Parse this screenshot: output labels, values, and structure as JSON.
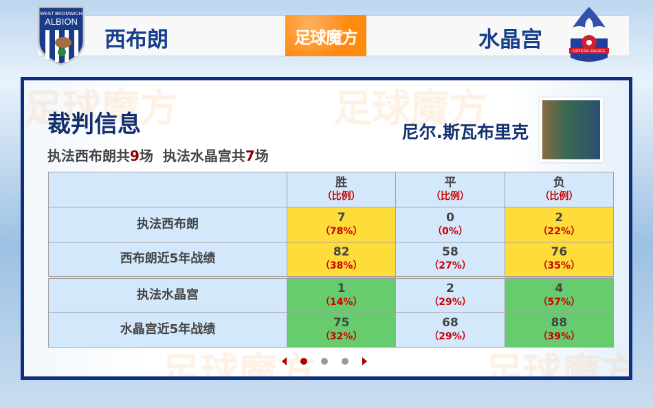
{
  "header": {
    "home_team": "西布朗",
    "away_team": "水晶宫",
    "brand": "足球魔方",
    "home_logo_text": "WEST BROMWICH ALBION",
    "away_logo_text": "CRYSTAL PALACE F.C."
  },
  "referee": {
    "section_title": "裁判信息",
    "name": "尼尔.斯瓦布里克",
    "summary_prefix_home": "执法西布朗共",
    "home_count": "9",
    "unit": "场",
    "summary_prefix_away": "执法水晶宫共",
    "away_count": "7"
  },
  "table": {
    "columns": [
      {
        "label": "胜",
        "sub": "（比例）"
      },
      {
        "label": "平",
        "sub": "（比例）"
      },
      {
        "label": "负",
        "sub": "（比例）"
      }
    ],
    "rows": [
      {
        "label": "执法西布朗",
        "cells": [
          {
            "v": "7",
            "p": "（78%）"
          },
          {
            "v": "0",
            "p": "（0%）"
          },
          {
            "v": "2",
            "p": "（22%）"
          }
        ]
      },
      {
        "label": "西布朗近5年战绩",
        "cells": [
          {
            "v": "82",
            "p": "（38%）"
          },
          {
            "v": "58",
            "p": "（27%）"
          },
          {
            "v": "76",
            "p": "（35%）"
          }
        ]
      },
      {
        "label": "执法水晶宫",
        "cells": [
          {
            "v": "1",
            "p": "（14%）"
          },
          {
            "v": "2",
            "p": "（29%）"
          },
          {
            "v": "4",
            "p": "（57%）"
          }
        ]
      },
      {
        "label": "水晶宫近5年战绩",
        "cells": [
          {
            "v": "75",
            "p": "（32%）"
          },
          {
            "v": "68",
            "p": "（29%）"
          },
          {
            "v": "88",
            "p": "（39%）"
          }
        ]
      }
    ]
  },
  "pager": {
    "pages": 3,
    "current": 1
  },
  "colors": {
    "home_highlight": "#fedc3a",
    "away_highlight": "#66cc6e",
    "neutral": "#d4e8fb",
    "accent": "#0c2f7f",
    "brand": "#ff8a10"
  }
}
